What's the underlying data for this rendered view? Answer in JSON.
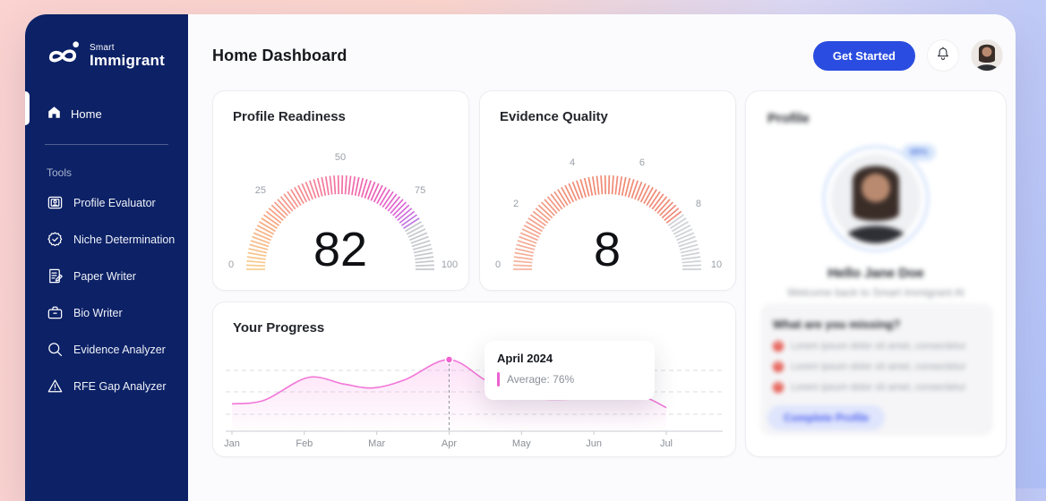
{
  "app": {
    "brand_small": "Smart",
    "brand_large": "Immigrant"
  },
  "sidebar": {
    "home_label": "Home",
    "tools_label": "Tools",
    "tools": [
      {
        "icon": "id-card-icon",
        "label": "Profile Evaluator"
      },
      {
        "icon": "badge-check-icon",
        "label": "Niche Determination"
      },
      {
        "icon": "paper-pen-icon",
        "label": "Paper Writer"
      },
      {
        "icon": "briefcase-icon",
        "label": "Bio Writer"
      },
      {
        "icon": "magnifier-icon",
        "label": "Evidence Analyzer"
      },
      {
        "icon": "warning-icon",
        "label": "RFE Gap Analyzer"
      }
    ]
  },
  "header": {
    "title": "Home Dashboard",
    "get_started_label": "Get Started"
  },
  "chart_data": [
    {
      "type": "gauge",
      "title": "Profile Readiness",
      "value": 82,
      "min": 0,
      "max": 100,
      "tick_labels": [
        0,
        25,
        50,
        75,
        100
      ],
      "color_stops": [
        [
          0,
          "#f8d08f"
        ],
        [
          0.2,
          "#f6a57f"
        ],
        [
          0.45,
          "#f4789c"
        ],
        [
          0.62,
          "#ee60b4"
        ],
        [
          0.75,
          "#dd66d8"
        ],
        [
          0.82,
          "#bb7ce4"
        ]
      ],
      "unfilled_color": "#c6c8ce"
    },
    {
      "type": "gauge",
      "title": "Evidence Quality",
      "value": 8,
      "min": 0,
      "max": 10,
      "tick_labels": [
        0,
        2,
        4,
        6,
        8,
        10
      ],
      "color_stops": [
        [
          0,
          "#f6b5a0"
        ],
        [
          0.4,
          "#f08a73"
        ],
        [
          0.8,
          "#ef8a78"
        ]
      ],
      "unfilled_color": "#ced1d6"
    },
    {
      "type": "area",
      "title": "Your Progress",
      "x": [
        "Jan",
        "Feb",
        "Mar",
        "Apr",
        "May",
        "Jun",
        "Jul"
      ],
      "values": [
        30,
        55,
        47,
        76,
        37,
        36,
        26
      ],
      "curve_points": [
        [
          0,
          29
        ],
        [
          0.45,
          33
        ],
        [
          1.05,
          57
        ],
        [
          1.55,
          50
        ],
        [
          1.95,
          46
        ],
        [
          2.4,
          55
        ],
        [
          3.0,
          76
        ],
        [
          3.55,
          52
        ],
        [
          4.1,
          36
        ],
        [
          4.7,
          34
        ],
        [
          5.35,
          37
        ],
        [
          5.7,
          36
        ],
        [
          6.0,
          25
        ]
      ],
      "highlight": {
        "month_index": 3,
        "value": 76
      },
      "tooltip": {
        "title": "April 2024",
        "value_label": "Average: 76%"
      },
      "line_color": "#f276d8",
      "fill_color": "#f89ae4",
      "grid": "dashed",
      "ylim": [
        0,
        100
      ]
    }
  ],
  "profile_panel": {
    "title": "Profile",
    "badge": "68%",
    "greeting": "Hello Jane Doe",
    "welcome": "Welcome back to Smart Immigrant AI",
    "missing": {
      "title": "What are you missing?",
      "items": [
        "Lorem ipsum dolor sit amet, consectetur",
        "Lorem ipsum dolor sit amet, consectetur",
        "Lorem ipsum dolor sit amet, consectetur"
      ],
      "action_label": "Complete Profile"
    }
  }
}
